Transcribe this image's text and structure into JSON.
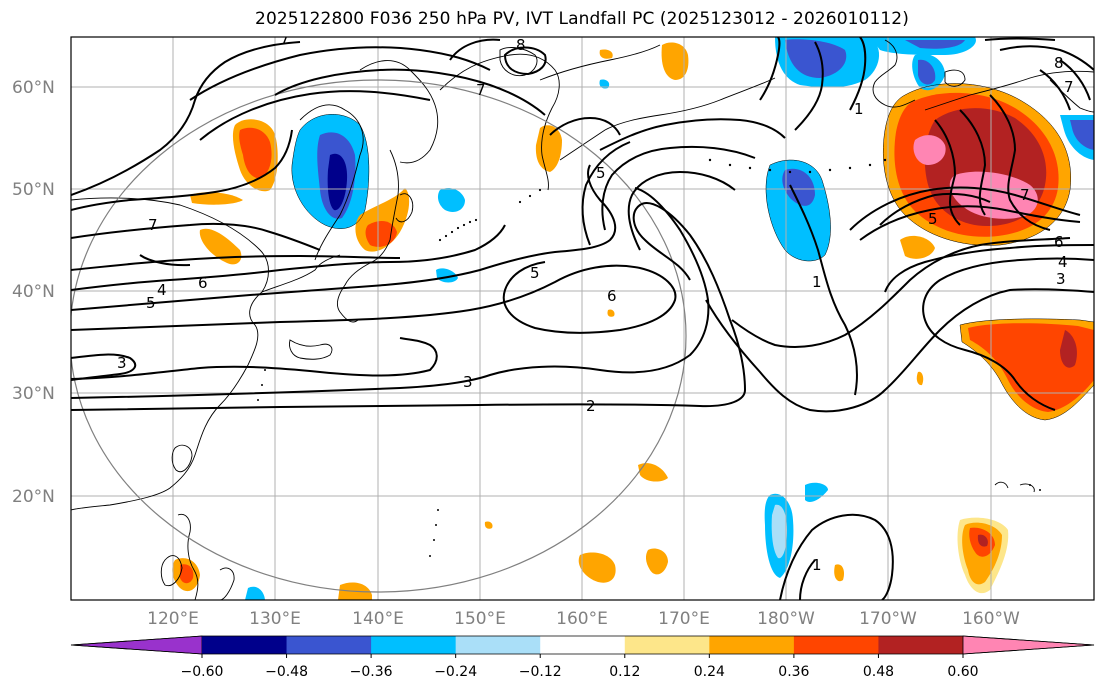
{
  "title": "2025122800 F036 250 hPa PV, IVT Landfall PC (2025123012 - 2026010112)",
  "lon_labels": [
    "120°E",
    "130°E",
    "140°E",
    "150°E",
    "160°E",
    "170°E",
    "180°W",
    "170°W",
    "160°W"
  ],
  "lat_labels": [
    "60°N",
    "50°N",
    "40°N",
    "30°N",
    "20°N"
  ],
  "contour_labels": [
    "8",
    "7",
    "7",
    "6",
    "5",
    "4",
    "3",
    "2",
    "3",
    "5",
    "6",
    "5",
    "6",
    "5",
    "4",
    "3",
    "1",
    "1",
    "8",
    "7",
    "1",
    "7",
    "7"
  ],
  "colorbar": {
    "ticks": [
      "−0.60",
      "−0.48",
      "−0.36",
      "−0.24",
      "−0.12",
      "0.12",
      "0.24",
      "0.36",
      "0.48",
      "0.60"
    ],
    "colors": [
      "#9932cc",
      "#00008b",
      "#3a55d0",
      "#00bfff",
      "#aadff8",
      "#ffffff",
      "#fde68a",
      "#ffa500",
      "#ff4500",
      "#b22222",
      "#ff85b3"
    ]
  }
}
